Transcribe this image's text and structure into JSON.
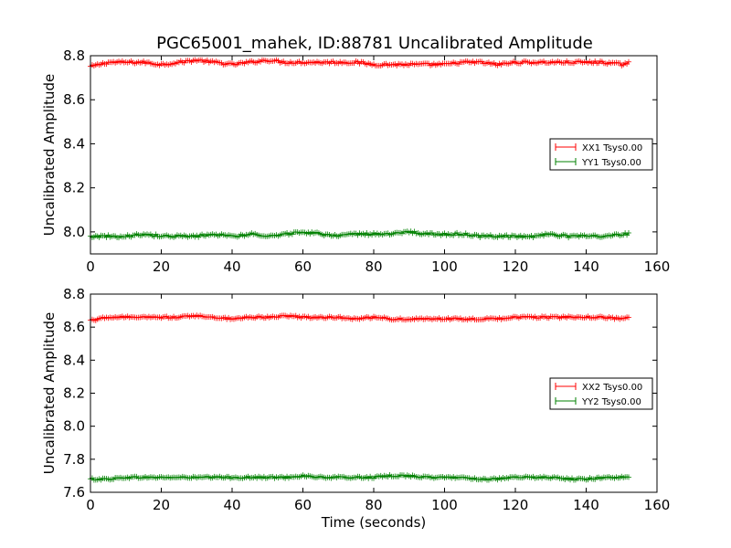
{
  "title": "PGC65001_mahek, ID:88781 Uncalibrated Amplitude",
  "chart_data": [
    {
      "type": "line",
      "xlabel": "",
      "ylabel": "Uncalibrated Amplitude",
      "xlim": [
        0,
        160
      ],
      "ylim": [
        7.9,
        8.8
      ],
      "xticks": [
        0,
        20,
        40,
        60,
        80,
        100,
        120,
        140,
        160
      ],
      "yticks": [
        8.0,
        8.2,
        8.4,
        8.6,
        8.8
      ],
      "xtick_labels": [
        "0",
        "20",
        "40",
        "60",
        "80",
        "100",
        "120",
        "140",
        "160"
      ],
      "ytick_labels": [
        "8.0",
        "8.2",
        "8.4",
        "8.6",
        "8.8"
      ],
      "legend": "center-right",
      "grid": false,
      "series": [
        {
          "name": "XX1 Tsys0.00",
          "color": "#ff0000",
          "marker": "plus",
          "x": [
            0,
            5,
            10,
            15,
            20,
            25,
            30,
            35,
            40,
            45,
            50,
            55,
            60,
            65,
            70,
            75,
            80,
            85,
            90,
            95,
            100,
            105,
            110,
            115,
            120,
            125,
            130,
            135,
            140,
            145,
            150,
            152
          ],
          "y": [
            8.75,
            8.77,
            8.77,
            8.77,
            8.76,
            8.77,
            8.78,
            8.77,
            8.76,
            8.77,
            8.78,
            8.77,
            8.77,
            8.77,
            8.77,
            8.77,
            8.76,
            8.76,
            8.76,
            8.76,
            8.76,
            8.77,
            8.77,
            8.76,
            8.77,
            8.77,
            8.77,
            8.77,
            8.77,
            8.77,
            8.76,
            8.77
          ]
        },
        {
          "name": "YY1 Tsys0.00",
          "color": "#008000",
          "marker": "plus",
          "x": [
            0,
            5,
            10,
            15,
            20,
            25,
            30,
            35,
            40,
            45,
            50,
            55,
            60,
            65,
            70,
            75,
            80,
            85,
            90,
            95,
            100,
            105,
            110,
            115,
            120,
            125,
            130,
            135,
            140,
            145,
            150,
            152
          ],
          "y": [
            7.98,
            7.98,
            7.98,
            7.99,
            7.98,
            7.98,
            7.98,
            7.99,
            7.98,
            7.99,
            7.98,
            7.99,
            8.0,
            7.99,
            7.98,
            7.99,
            7.99,
            7.99,
            8.0,
            7.99,
            7.99,
            7.99,
            7.98,
            7.98,
            7.98,
            7.98,
            7.99,
            7.98,
            7.98,
            7.98,
            7.99,
            7.99
          ]
        }
      ]
    },
    {
      "type": "line",
      "xlabel": "Time (seconds)",
      "ylabel": "Uncalibrated Amplitude",
      "xlim": [
        0,
        160
      ],
      "ylim": [
        7.6,
        8.8
      ],
      "xticks": [
        0,
        20,
        40,
        60,
        80,
        100,
        120,
        140,
        160
      ],
      "yticks": [
        7.6,
        7.8,
        8.0,
        8.2,
        8.4,
        8.6,
        8.8
      ],
      "xtick_labels": [
        "0",
        "20",
        "40",
        "60",
        "80",
        "100",
        "120",
        "140",
        "160"
      ],
      "ytick_labels": [
        "7.6",
        "7.8",
        "8.0",
        "8.2",
        "8.4",
        "8.6",
        "8.8"
      ],
      "legend": "center-right",
      "grid": false,
      "series": [
        {
          "name": "XX2 Tsys0.00",
          "color": "#ff0000",
          "marker": "plus",
          "x": [
            0,
            5,
            10,
            15,
            20,
            25,
            30,
            35,
            40,
            45,
            50,
            55,
            60,
            65,
            70,
            75,
            80,
            85,
            90,
            95,
            100,
            105,
            110,
            115,
            120,
            125,
            130,
            135,
            140,
            145,
            150,
            152
          ],
          "y": [
            8.64,
            8.66,
            8.66,
            8.66,
            8.66,
            8.66,
            8.67,
            8.66,
            8.65,
            8.66,
            8.66,
            8.67,
            8.66,
            8.66,
            8.66,
            8.65,
            8.66,
            8.65,
            8.65,
            8.65,
            8.65,
            8.65,
            8.65,
            8.65,
            8.66,
            8.66,
            8.66,
            8.66,
            8.66,
            8.66,
            8.65,
            8.66
          ]
        },
        {
          "name": "YY2 Tsys0.00",
          "color": "#008000",
          "marker": "plus",
          "x": [
            0,
            5,
            10,
            15,
            20,
            25,
            30,
            35,
            40,
            45,
            50,
            55,
            60,
            65,
            70,
            75,
            80,
            85,
            90,
            95,
            100,
            105,
            110,
            115,
            120,
            125,
            130,
            135,
            140,
            145,
            150,
            152
          ],
          "y": [
            7.68,
            7.68,
            7.69,
            7.69,
            7.69,
            7.69,
            7.69,
            7.69,
            7.69,
            7.69,
            7.69,
            7.69,
            7.7,
            7.69,
            7.69,
            7.69,
            7.69,
            7.7,
            7.7,
            7.69,
            7.69,
            7.69,
            7.68,
            7.68,
            7.69,
            7.69,
            7.69,
            7.68,
            7.68,
            7.69,
            7.69,
            7.69
          ]
        }
      ]
    }
  ]
}
